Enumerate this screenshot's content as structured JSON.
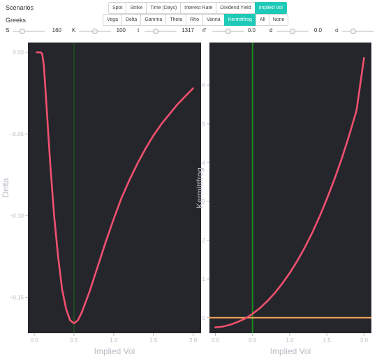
{
  "scenarios": {
    "label": "Scenarios",
    "buttons": [
      "Spot",
      "Strike",
      "Time (Days)",
      "Interest Rate",
      "Dividend Yield",
      "Implied Vol"
    ],
    "active": "Implied Vol"
  },
  "greeks": {
    "label": "Greeks",
    "buttons": [
      "Vega",
      "Delta",
      "Gamma",
      "Theta",
      "Rho",
      "Vanna",
      "Kermittfrog",
      "All",
      "None"
    ],
    "active": "Kermittfrog"
  },
  "sliders": [
    {
      "label": "S",
      "value": "160",
      "fraction": 0.3
    },
    {
      "label": "K",
      "value": "100",
      "fraction": 0.5
    },
    {
      "label": "t",
      "value": "1317",
      "fraction": 0.35
    },
    {
      "label": "rf",
      "value": "0.0",
      "fraction": 0.5
    },
    {
      "label": "d",
      "value": "0.0",
      "fraction": 0.5
    },
    {
      "label": "σ",
      "value": "",
      "fraction": 0.35
    }
  ],
  "colors": {
    "plot_bg": "#24262b",
    "curve": "#f0506e",
    "marker_left": "#1a6b1a",
    "marker_right": "#1a8c1a",
    "zero_line": "#f5a35c",
    "text": "#b8bcc4",
    "accent": "#1dc9b7"
  },
  "chart_data": [
    {
      "type": "line",
      "xlabel": "Implied Vol",
      "ylabel": "Delta",
      "xlim": [
        -0.08,
        2.1
      ],
      "ylim": [
        -0.172,
        0.006
      ],
      "xticks": [
        0.0,
        0.5,
        1.0,
        1.5,
        2.0
      ],
      "xtick_labels": [
        "0.0",
        "0.5",
        "1.0",
        "1.5",
        "2.0"
      ],
      "yticks": [
        0.0,
        -0.05,
        -0.1,
        -0.15
      ],
      "ytick_labels": [
        "0.00",
        "−0.05",
        "−0.10",
        "−0.15"
      ],
      "vline_x": 0.5,
      "grid": false,
      "x": [
        0.03,
        0.05,
        0.08,
        0.1,
        0.12,
        0.15,
        0.2,
        0.25,
        0.3,
        0.35,
        0.4,
        0.45,
        0.5,
        0.55,
        0.6,
        0.7,
        0.8,
        0.9,
        1.0,
        1.1,
        1.2,
        1.3,
        1.4,
        1.5,
        1.6,
        1.7,
        1.8,
        1.9,
        2.0
      ],
      "y": [
        0.0,
        0.0,
        0.0,
        -0.001,
        -0.008,
        -0.03,
        -0.068,
        -0.1,
        -0.125,
        -0.145,
        -0.157,
        -0.164,
        -0.166,
        -0.164,
        -0.159,
        -0.146,
        -0.131,
        -0.116,
        -0.102,
        -0.089,
        -0.078,
        -0.068,
        -0.059,
        -0.051,
        -0.044,
        -0.038,
        -0.032,
        -0.027,
        -0.022
      ]
    },
    {
      "type": "line",
      "xlabel": "Implied Vol",
      "ylabel": "Kermittfrog",
      "xlim": [
        -0.08,
        2.1
      ],
      "ylim": [
        -0.4,
        7.1
      ],
      "xticks": [
        0.0,
        0.5,
        1.0,
        1.5,
        2.0
      ],
      "xtick_labels": [
        "0.0",
        "0.5",
        "1.0",
        "1.5",
        "2.0"
      ],
      "yticks": [
        0,
        1,
        2,
        3,
        4,
        5,
        6
      ],
      "ytick_labels": [
        "0",
        "1",
        "2",
        "3",
        "4",
        "5",
        "6"
      ],
      "vline_x": 0.5,
      "hline_y": 0,
      "grid": false,
      "x": [
        0.0,
        0.1,
        0.2,
        0.3,
        0.4,
        0.5,
        0.6,
        0.7,
        0.8,
        0.9,
        1.0,
        1.1,
        1.2,
        1.3,
        1.4,
        1.5,
        1.6,
        1.7,
        1.8,
        1.9,
        2.0
      ],
      "y": [
        -0.25,
        -0.23,
        -0.18,
        -0.11,
        -0.02,
        0.1,
        0.25,
        0.43,
        0.64,
        0.88,
        1.15,
        1.46,
        1.8,
        2.18,
        2.6,
        3.06,
        3.56,
        4.1,
        4.7,
        5.35,
        6.7
      ]
    }
  ]
}
